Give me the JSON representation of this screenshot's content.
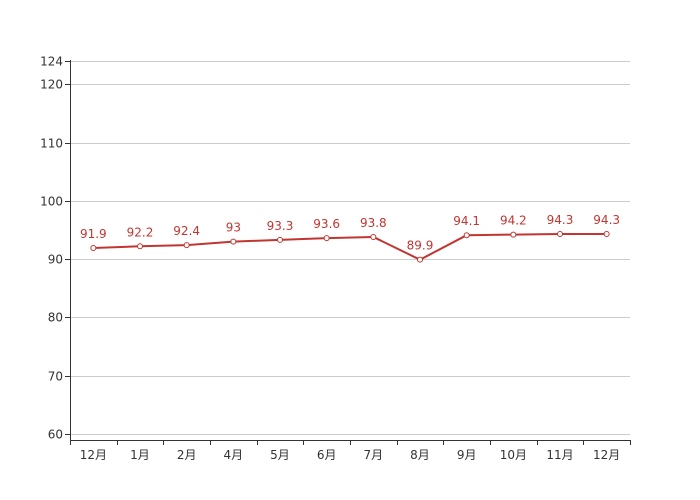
{
  "chart_data": {
    "type": "line",
    "categories": [
      "12月",
      "1月",
      "2月",
      "4月",
      "5月",
      "6月",
      "7月",
      "8月",
      "9月",
      "10月",
      "11月",
      "12月"
    ],
    "series": [
      {
        "values": [
          91.9,
          92.2,
          92.4,
          93,
          93.3,
          93.6,
          93.8,
          89.9,
          94.1,
          94.2,
          94.3,
          94.3
        ],
        "color": "#c23531",
        "value_labels": [
          "91.9",
          "92.2",
          "92.4",
          "93",
          "93.3",
          "93.6",
          "93.8",
          "89.9",
          "94.1",
          "94.2",
          "94.3",
          "94.3"
        ]
      }
    ],
    "ylim": [
      60,
      124
    ],
    "yticks": [
      60,
      70,
      80,
      90,
      100,
      110,
      120,
      124
    ],
    "ytick_labels": [
      "60",
      "70",
      "80",
      "90",
      "100",
      "110",
      "120",
      "124"
    ],
    "grid": true,
    "gridline_color": "#cccccc",
    "axis_color": "#333333",
    "point_fill": "#ffffff"
  }
}
